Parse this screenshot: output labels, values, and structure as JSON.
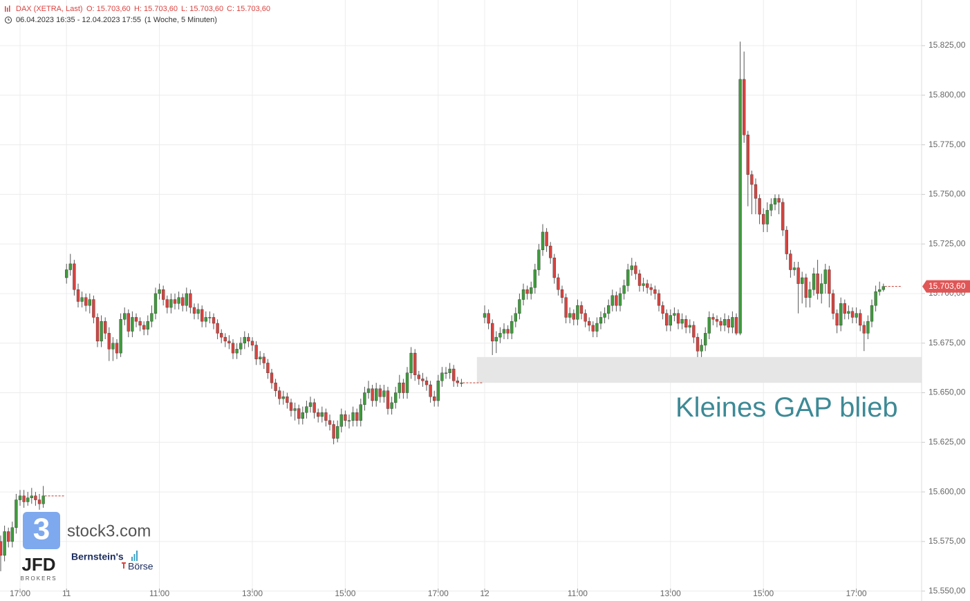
{
  "chart_data": {
    "type": "candlestick",
    "header": {
      "symbol": "DAX (XETRA, Last)",
      "ohlc": [
        "O: 15.703,60",
        "H: 15.703,60",
        "L: 15.703,60",
        "C: 15.703,60"
      ],
      "range": "06.04.2023 16:35 - 12.04.2023 17:55",
      "period": "(1 Woche, 5 Minuten)"
    },
    "up_color": "#3f9b3c",
    "down_color": "#d9433f",
    "grid": true,
    "xlim": [
      0,
      238
    ],
    "ylim": [
      15545,
      15848
    ],
    "xticks": [
      {
        "value": 5,
        "label": "17:00"
      },
      {
        "value": 17,
        "label": "11"
      },
      {
        "value": 41,
        "label": "11:00"
      },
      {
        "value": 65,
        "label": "13:00"
      },
      {
        "value": 89,
        "label": "15:00"
      },
      {
        "value": 113,
        "label": "17:00"
      },
      {
        "value": 125,
        "label": "12"
      },
      {
        "value": 149,
        "label": "11:00"
      },
      {
        "value": 173,
        "label": "13:00"
      },
      {
        "value": 197,
        "label": "15:00"
      },
      {
        "value": 221,
        "label": "17:00"
      }
    ],
    "yticks": [
      {
        "value": 15550,
        "label": "15.550,00"
      },
      {
        "value": 15575,
        "label": "15.575,00"
      },
      {
        "value": 15600,
        "label": "15.600,00"
      },
      {
        "value": 15625,
        "label": "15.625,00"
      },
      {
        "value": 15650,
        "label": "15.650,00"
      },
      {
        "value": 15675,
        "label": "15.675,00"
      },
      {
        "value": 15700,
        "label": "15.700,00"
      },
      {
        "value": 15725,
        "label": "15.725,00"
      },
      {
        "value": 15750,
        "label": "15.750,00"
      },
      {
        "value": 15775,
        "label": "15.775,00"
      },
      {
        "value": 15800,
        "label": "15.800,00"
      },
      {
        "value": 15825,
        "label": "15.825,00"
      }
    ],
    "last_price": {
      "value": 15703.6,
      "label": "15.703,60"
    },
    "gap_zone": {
      "low": 15655,
      "high": 15668,
      "x_start": 123
    },
    "annotation": "Kleines GAP blieb",
    "branding": {
      "stock3_mark": "3",
      "stock3": "stock3.com",
      "jfd": "JFD",
      "jfd_sub": "BROKERS",
      "bernstein": "Bernstein's",
      "boerse": "Börse"
    },
    "x": [
      0,
      1,
      2,
      3,
      4,
      5,
      6,
      7,
      8,
      9,
      10,
      11,
      17,
      18,
      19,
      20,
      21,
      22,
      23,
      24,
      25,
      26,
      27,
      28,
      29,
      30,
      31,
      32,
      33,
      34,
      35,
      36,
      37,
      38,
      39,
      40,
      41,
      42,
      43,
      44,
      45,
      46,
      47,
      48,
      49,
      50,
      51,
      52,
      53,
      54,
      55,
      56,
      57,
      58,
      59,
      60,
      61,
      62,
      63,
      64,
      65,
      66,
      67,
      68,
      69,
      70,
      71,
      72,
      73,
      74,
      75,
      76,
      77,
      78,
      79,
      80,
      81,
      82,
      83,
      84,
      85,
      86,
      87,
      88,
      89,
      90,
      91,
      92,
      93,
      94,
      95,
      96,
      97,
      98,
      99,
      100,
      101,
      102,
      103,
      104,
      105,
      106,
      107,
      108,
      109,
      110,
      111,
      112,
      113,
      114,
      115,
      116,
      117,
      118,
      119,
      125,
      126,
      127,
      128,
      129,
      130,
      131,
      132,
      133,
      134,
      135,
      136,
      137,
      138,
      139,
      140,
      141,
      142,
      143,
      144,
      145,
      146,
      147,
      148,
      149,
      150,
      151,
      152,
      153,
      154,
      155,
      156,
      157,
      158,
      159,
      160,
      161,
      162,
      163,
      164,
      165,
      166,
      167,
      168,
      169,
      170,
      171,
      172,
      173,
      174,
      175,
      176,
      177,
      178,
      179,
      180,
      181,
      182,
      183,
      184,
      185,
      186,
      187,
      188,
      189,
      190,
      191,
      192,
      193,
      194,
      195,
      196,
      197,
      198,
      199,
      200,
      201,
      202,
      203,
      204,
      205,
      206,
      207,
      208,
      209,
      210,
      211,
      212,
      213,
      214,
      215,
      216,
      217,
      218,
      219,
      220,
      221,
      222,
      223,
      224,
      225,
      226,
      227,
      228
    ],
    "open": [
      15575,
      15568,
      15580,
      15575,
      15582,
      15596,
      15598,
      15595,
      15597,
      15598,
      15596,
      15594,
      15708,
      15712,
      15715,
      15702,
      15696,
      15698,
      15694,
      15697,
      15688,
      15676,
      15686,
      15680,
      15672,
      15675,
      15670,
      15687,
      15690,
      15681,
      15688,
      15686,
      15684,
      15682,
      15686,
      15690,
      15700,
      15702,
      15697,
      15693,
      15697,
      15695,
      15698,
      15694,
      15700,
      15693,
      15690,
      15692,
      15686,
      15688,
      15688,
      15685,
      15680,
      15678,
      15676,
      15675,
      15670,
      15672,
      15675,
      15678,
      15676,
      15674,
      15667,
      15668,
      15665,
      15660,
      15655,
      15651,
      15647,
      15648,
      15645,
      15641,
      15642,
      15637,
      15640,
      15643,
      15645,
      15640,
      15638,
      15640,
      15636,
      15634,
      15627,
      15633,
      15639,
      15636,
      15636,
      15640,
      15636,
      15644,
      15650,
      15652,
      15646,
      15652,
      15648,
      15651,
      15642,
      15645,
      15650,
      15655,
      15650,
      15660,
      15670,
      15659,
      15657,
      15656,
      15654,
      15648,
      15646,
      15656,
      15660,
      15660,
      15662,
      15656,
      15655,
      15688,
      15690,
      15685,
      15676,
      15678,
      15680,
      15682,
      15680,
      15686,
      15690,
      15697,
      15702,
      15700,
      15703,
      15712,
      15722,
      15731,
      15724,
      15718,
      15708,
      15702,
      15698,
      15688,
      15690,
      15687,
      15694,
      15690,
      15686,
      15684,
      15681,
      15685,
      15688,
      15690,
      15694,
      15699,
      15694,
      15700,
      15704,
      15712,
      15714,
      15710,
      15704,
      15705,
      15703,
      15702,
      15700,
      15694,
      15690,
      15684,
      15689,
      15690,
      15685,
      15687,
      15683,
      15684,
      15678,
      15671,
      15674,
      15680,
      15688,
      15687,
      15686,
      15684,
      15687,
      15683,
      15688,
      15680,
      15808,
      15780,
      15760,
      15755,
      15748,
      15740,
      15735,
      15742,
      15745,
      15748,
      15746,
      15732,
      15720,
      15712,
      15713,
      15705,
      15708,
      15698,
      15702,
      15710,
      15700,
      15705,
      15712,
      15700,
      15690,
      15684,
      15695,
      15690,
      15691,
      15688,
      15690,
      15684,
      15680,
      15686,
      15694,
      15701,
      15702
    ],
    "high": [
      15578,
      15583,
      15582,
      15585,
      15599,
      15601,
      15601,
      15600,
      15602,
      15600,
      15599,
      15603,
      15715,
      15720,
      15717,
      15705,
      15701,
      15700,
      15700,
      15699,
      15690,
      15689,
      15688,
      15683,
      15678,
      15677,
      15690,
      15693,
      15692,
      15691,
      15690,
      15688,
      15686,
      15689,
      15694,
      15703,
      15705,
      15704,
      15699,
      15700,
      15700,
      15701,
      15700,
      15703,
      15702,
      15695,
      15695,
      15694,
      15691,
      15691,
      15690,
      15687,
      15682,
      15680,
      15679,
      15677,
      15675,
      15678,
      15681,
      15680,
      15678,
      15676,
      15671,
      15670,
      15667,
      15662,
      15657,
      15653,
      15651,
      15650,
      15647,
      15645,
      15644,
      15643,
      15646,
      15648,
      15647,
      15642,
      15643,
      15642,
      15639,
      15636,
      15636,
      15642,
      15641,
      15639,
      15643,
      15642,
      15647,
      15653,
      15656,
      15654,
      15655,
      15654,
      15654,
      15653,
      15648,
      15653,
      15659,
      15657,
      15663,
      15673,
      15672,
      15661,
      15660,
      15658,
      15656,
      15651,
      15659,
      15663,
      15663,
      15665,
      15664,
      15658,
      15657,
      15694,
      15692,
      15687,
      15681,
      15683,
      15685,
      15684,
      15689,
      15693,
      15700,
      15705,
      15704,
      15706,
      15715,
      15725,
      15735,
      15733,
      15726,
      15720,
      15710,
      15704,
      15700,
      15693,
      15692,
      15697,
      15696,
      15692,
      15688,
      15686,
      15688,
      15691,
      15693,
      15697,
      15702,
      15701,
      15703,
      15707,
      15715,
      15718,
      15716,
      15712,
      15708,
      15707,
      15705,
      15704,
      15702,
      15696,
      15692,
      15692,
      15693,
      15692,
      15690,
      15689,
      15687,
      15686,
      15680,
      15677,
      15683,
      15691,
      15690,
      15689,
      15688,
      15690,
      15689,
      15691,
      15690,
      15827,
      15822,
      15782,
      15762,
      15758,
      15750,
      15743,
      15746,
      15748,
      15750,
      15750,
      15748,
      15734,
      15722,
      15716,
      15716,
      15711,
      15710,
      15706,
      15713,
      15717,
      15710,
      15715,
      15714,
      15702,
      15692,
      15698,
      15697,
      15694,
      15693,
      15693,
      15692,
      15686,
      15689,
      15697,
      15704,
      15706,
      15705
    ],
    "low": [
      15560,
      15565,
      15572,
      15572,
      15579,
      15593,
      15592,
      15593,
      15594,
      15593,
      15591,
      15592,
      15705,
      15709,
      15699,
      15693,
      15693,
      15691,
      15690,
      15685,
      15673,
      15673,
      15677,
      15666,
      15666,
      15667,
      15668,
      15684,
      15678,
      15678,
      15683,
      15681,
      15679,
      15679,
      15683,
      15687,
      15697,
      15694,
      15690,
      15690,
      15692,
      15692,
      15691,
      15691,
      15690,
      15687,
      15687,
      15683,
      15683,
      15685,
      15682,
      15677,
      15675,
      15673,
      15672,
      15667,
      15667,
      15669,
      15672,
      15673,
      15671,
      15664,
      15664,
      15662,
      15657,
      15652,
      15648,
      15644,
      15644,
      15642,
      15638,
      15636,
      15634,
      15634,
      15637,
      15640,
      15637,
      15635,
      15635,
      15633,
      15631,
      15624,
      15625,
      15630,
      15633,
      15632,
      15633,
      15633,
      15633,
      15641,
      15647,
      15643,
      15643,
      15645,
      15645,
      15639,
      15639,
      15642,
      15647,
      15647,
      15647,
      15657,
      15656,
      15654,
      15653,
      15651,
      15645,
      15643,
      15643,
      15653,
      15657,
      15657,
      15653,
      15653,
      15653,
      15685,
      15682,
      15669,
      15670,
      15675,
      15677,
      15677,
      15677,
      15683,
      15687,
      15694,
      15697,
      15697,
      15700,
      15709,
      15719,
      15721,
      15715,
      15705,
      15699,
      15695,
      15685,
      15685,
      15684,
      15684,
      15687,
      15683,
      15681,
      15678,
      15678,
      15682,
      15685,
      15687,
      15691,
      15691,
      15691,
      15697,
      15701,
      15709,
      15707,
      15701,
      15701,
      15700,
      15699,
      15697,
      15691,
      15687,
      15681,
      15681,
      15686,
      15682,
      15682,
      15680,
      15680,
      15675,
      15668,
      15668,
      15671,
      15677,
      15684,
      15683,
      15681,
      15681,
      15680,
      15680,
      15679,
      15679,
      15776,
      15744,
      15740,
      15740,
      15735,
      15731,
      15731,
      15739,
      15742,
      15740,
      15729,
      15717,
      15708,
      15709,
      15690,
      15695,
      15693,
      15693,
      15699,
      15697,
      15695,
      15700,
      15693,
      15687,
      15680,
      15681,
      15687,
      15687,
      15685,
      15685,
      15681,
      15671,
      15677,
      15683,
      15691,
      15699,
      15701
    ],
    "close": [
      15568,
      15580,
      15575,
      15582,
      15596,
      15598,
      15595,
      15597,
      15598,
      15596,
      15594,
      15598,
      15712,
      15715,
      15702,
      15696,
      15698,
      15694,
      15697,
      15688,
      15676,
      15686,
      15680,
      15672,
      15675,
      15670,
      15687,
      15690,
      15681,
      15688,
      15686,
      15684,
      15682,
      15686,
      15690,
      15700,
      15702,
      15697,
      15693,
      15697,
      15695,
      15698,
      15694,
      15700,
      15693,
      15690,
      15692,
      15686,
      15688,
      15688,
      15685,
      15680,
      15678,
      15676,
      15675,
      15670,
      15672,
      15675,
      15678,
      15676,
      15674,
      15667,
      15668,
      15665,
      15660,
      15655,
      15651,
      15647,
      15648,
      15645,
      15641,
      15642,
      15637,
      15640,
      15643,
      15645,
      15640,
      15638,
      15640,
      15636,
      15634,
      15627,
      15633,
      15639,
      15636,
      15636,
      15640,
      15636,
      15644,
      15650,
      15652,
      15646,
      15652,
      15648,
      15651,
      15642,
      15645,
      15650,
      15655,
      15650,
      15660,
      15670,
      15659,
      15657,
      15656,
      15654,
      15648,
      15646,
      15656,
      15660,
      15660,
      15662,
      15656,
      15655,
      15655,
      15690,
      15685,
      15676,
      15678,
      15680,
      15682,
      15680,
      15686,
      15690,
      15697,
      15702,
      15700,
      15703,
      15712,
      15722,
      15731,
      15724,
      15718,
      15708,
      15702,
      15698,
      15688,
      15690,
      15687,
      15694,
      15690,
      15686,
      15684,
      15681,
      15685,
      15688,
      15690,
      15694,
      15699,
      15694,
      15700,
      15704,
      15712,
      15714,
      15710,
      15704,
      15705,
      15703,
      15702,
      15700,
      15694,
      15690,
      15684,
      15689,
      15690,
      15685,
      15687,
      15683,
      15684,
      15678,
      15671,
      15674,
      15680,
      15688,
      15687,
      15686,
      15684,
      15687,
      15683,
      15688,
      15680,
      15808,
      15780,
      15760,
      15755,
      15748,
      15740,
      15735,
      15742,
      15745,
      15748,
      15746,
      15732,
      15720,
      15712,
      15713,
      15705,
      15708,
      15698,
      15702,
      15710,
      15700,
      15705,
      15712,
      15700,
      15690,
      15684,
      15695,
      15690,
      15691,
      15688,
      15690,
      15684,
      15680,
      15686,
      15694,
      15701,
      15702,
      15703.6
    ]
  }
}
